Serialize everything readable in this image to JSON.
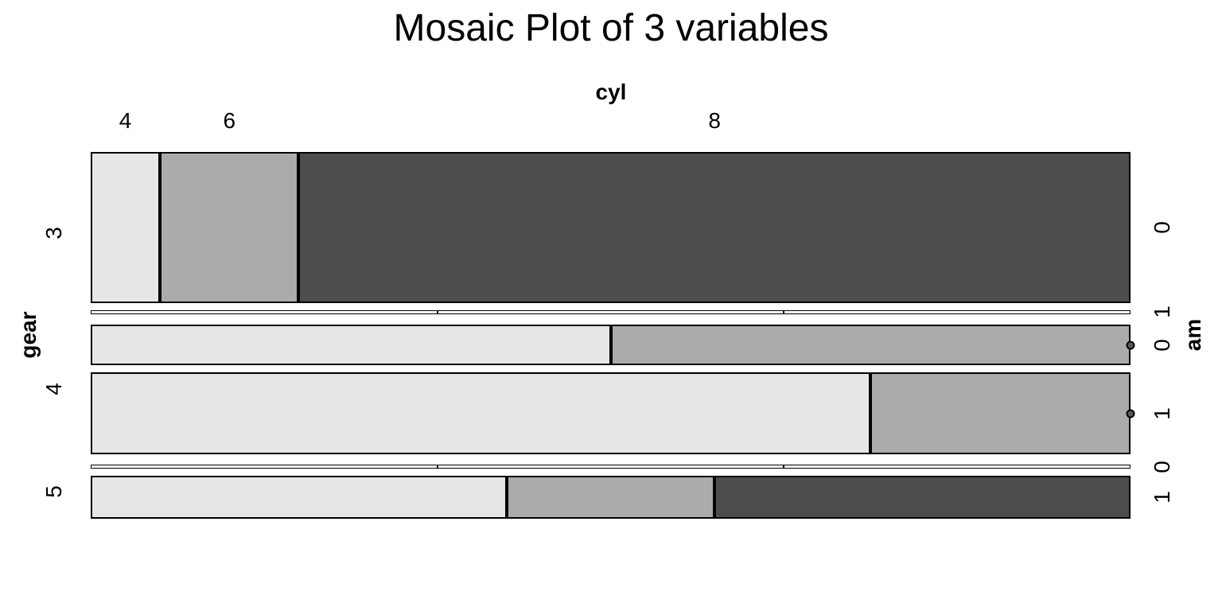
{
  "title": "Mosaic Plot of 3 variables",
  "axes": {
    "top_label": "cyl",
    "left_label": "gear",
    "right_label": "am"
  },
  "chart_data": {
    "type": "mosaic",
    "title": "Mosaic Plot of 3 variables",
    "column_variable": "cyl",
    "column_categories": [
      "4",
      "6",
      "8"
    ],
    "row_variable": "gear",
    "row_categories": [
      "3",
      "4",
      "5"
    ],
    "inner_row_variable": "am",
    "inner_row_categories": [
      "0",
      "1"
    ],
    "cell_colors": {
      "4": "#e6e6e6",
      "6": "#ababab",
      "8": "#4d4d4d"
    },
    "border_color": "#000000",
    "background": "#ffffff",
    "zero_cell_marker": "dot",
    "zero_dot_fill": "#595959",
    "counts": [
      {
        "gear": "3",
        "am": "0",
        "cells": [
          1,
          2,
          12
        ]
      },
      {
        "gear": "3",
        "am": "1",
        "cells": [
          0,
          0,
          0
        ]
      },
      {
        "gear": "4",
        "am": "0",
        "cells": [
          2,
          2,
          0
        ]
      },
      {
        "gear": "4",
        "am": "1",
        "cells": [
          6,
          2,
          0
        ]
      },
      {
        "gear": "5",
        "am": "0",
        "cells": [
          0,
          0,
          0
        ]
      },
      {
        "gear": "5",
        "am": "1",
        "cells": [
          2,
          1,
          2
        ]
      }
    ]
  }
}
